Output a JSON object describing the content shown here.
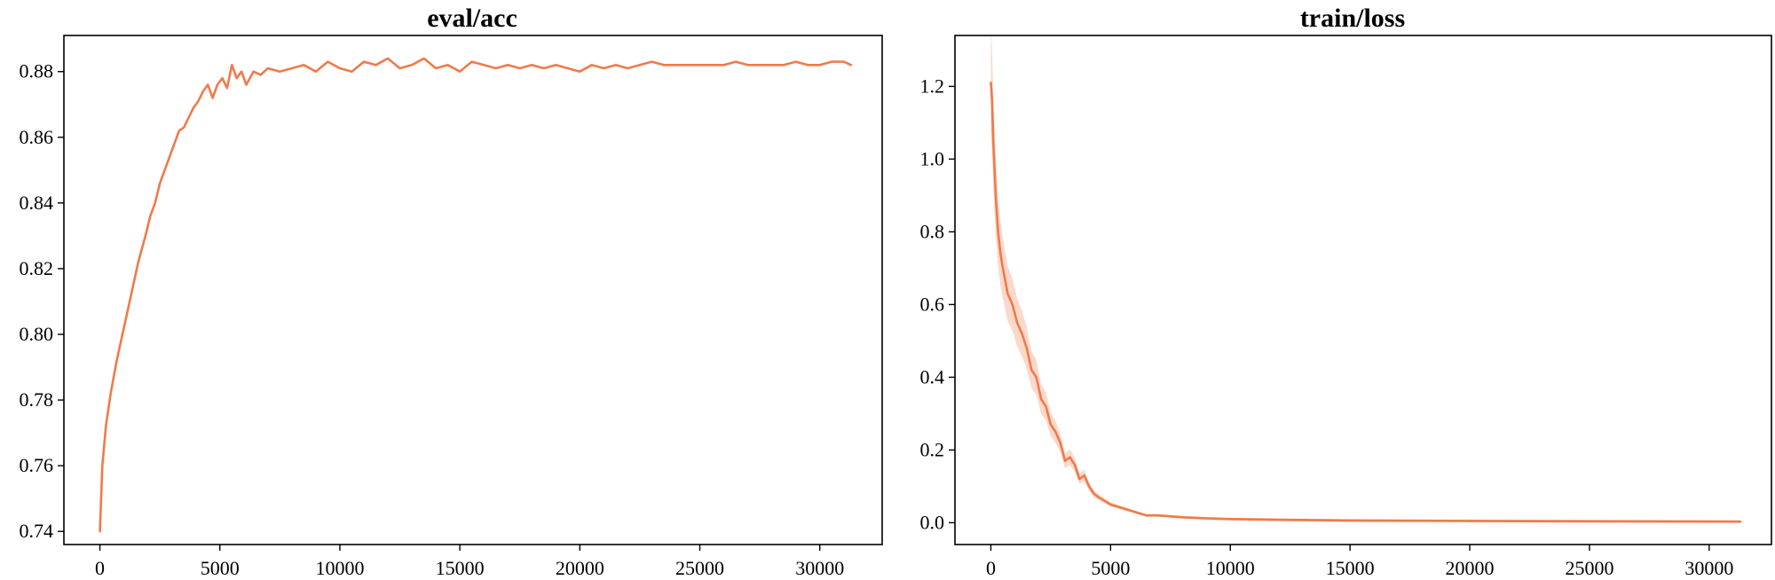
{
  "colors": {
    "series": "#f07a4a",
    "band": "#f6b9a0"
  },
  "chart_data": [
    {
      "type": "line",
      "title": "eval/acc",
      "xlabel": "",
      "ylabel": "",
      "xlim": [
        -1500,
        32600
      ],
      "ylim": [
        0.736,
        0.891
      ],
      "xticks": [
        0,
        5000,
        10000,
        15000,
        20000,
        25000,
        30000
      ],
      "yticks": [
        0.74,
        0.76,
        0.78,
        0.8,
        0.82,
        0.84,
        0.86,
        0.88
      ],
      "ytick_labels": [
        "0.74",
        "0.76",
        "0.78",
        "0.80",
        "0.82",
        "0.84",
        "0.86",
        "0.88"
      ],
      "grid": false,
      "series": [
        {
          "x": [
            0,
            100,
            250,
            450,
            700,
            1000,
            1300,
            1600,
            1900,
            2100,
            2300,
            2500,
            2700,
            2900,
            3100,
            3300,
            3500,
            3700,
            3900,
            4100,
            4300,
            4500,
            4700,
            4900,
            5100,
            5300,
            5500,
            5700,
            5900,
            6100,
            6400,
            6700,
            7000,
            7500,
            8000,
            8500,
            9000,
            9500,
            10000,
            10500,
            11000,
            11500,
            12000,
            12500,
            13000,
            13500,
            14000,
            14500,
            15000,
            15500,
            16000,
            16500,
            17000,
            17500,
            18000,
            18500,
            19000,
            19500,
            20000,
            20500,
            21000,
            21500,
            22000,
            22500,
            23000,
            23500,
            24000,
            24500,
            25000,
            25500,
            26000,
            26500,
            27000,
            27500,
            28000,
            28500,
            29000,
            29500,
            30000,
            30500,
            31000,
            31300
          ],
          "y": [
            0.74,
            0.76,
            0.772,
            0.782,
            0.792,
            0.802,
            0.812,
            0.822,
            0.83,
            0.836,
            0.84,
            0.846,
            0.85,
            0.854,
            0.858,
            0.862,
            0.863,
            0.866,
            0.869,
            0.871,
            0.874,
            0.876,
            0.872,
            0.876,
            0.878,
            0.875,
            0.882,
            0.878,
            0.88,
            0.876,
            0.88,
            0.879,
            0.881,
            0.88,
            0.881,
            0.882,
            0.88,
            0.883,
            0.881,
            0.88,
            0.883,
            0.882,
            0.884,
            0.881,
            0.882,
            0.884,
            0.881,
            0.882,
            0.88,
            0.883,
            0.882,
            0.881,
            0.882,
            0.881,
            0.882,
            0.881,
            0.882,
            0.881,
            0.88,
            0.882,
            0.881,
            0.882,
            0.881,
            0.882,
            0.883,
            0.882,
            0.882,
            0.882,
            0.882,
            0.882,
            0.882,
            0.883,
            0.882,
            0.882,
            0.882,
            0.882,
            0.883,
            0.882,
            0.882,
            0.883,
            0.883,
            0.882
          ]
        }
      ]
    },
    {
      "type": "line",
      "title": "train/loss",
      "xlabel": "",
      "ylabel": "",
      "xlim": [
        -1500,
        32600
      ],
      "ylim": [
        -0.06,
        1.34
      ],
      "xticks": [
        0,
        5000,
        10000,
        15000,
        20000,
        25000,
        30000
      ],
      "yticks": [
        0.0,
        0.2,
        0.4,
        0.6,
        0.8,
        1.0,
        1.2
      ],
      "ytick_labels": [
        "0.0",
        "0.2",
        "0.4",
        "0.6",
        "0.8",
        "1.0",
        "1.2"
      ],
      "grid": false,
      "series": [
        {
          "x": [
            0,
            50,
            100,
            200,
            300,
            400,
            500,
            700,
            900,
            1100,
            1300,
            1500,
            1700,
            1900,
            2100,
            2300,
            2500,
            2700,
            2900,
            3100,
            3300,
            3500,
            3700,
            3900,
            4100,
            4300,
            4500,
            5000,
            5500,
            6000,
            6500,
            7000,
            8000,
            9000,
            10000,
            12000,
            15000,
            20000,
            25000,
            31300
          ],
          "y": [
            1.21,
            1.16,
            1.05,
            0.9,
            0.8,
            0.74,
            0.7,
            0.63,
            0.6,
            0.55,
            0.52,
            0.48,
            0.42,
            0.4,
            0.34,
            0.32,
            0.27,
            0.25,
            0.22,
            0.17,
            0.18,
            0.16,
            0.12,
            0.13,
            0.1,
            0.08,
            0.07,
            0.05,
            0.04,
            0.03,
            0.02,
            0.02,
            0.015,
            0.012,
            0.01,
            0.008,
            0.006,
            0.005,
            0.004,
            0.003
          ]
        }
      ]
    }
  ]
}
